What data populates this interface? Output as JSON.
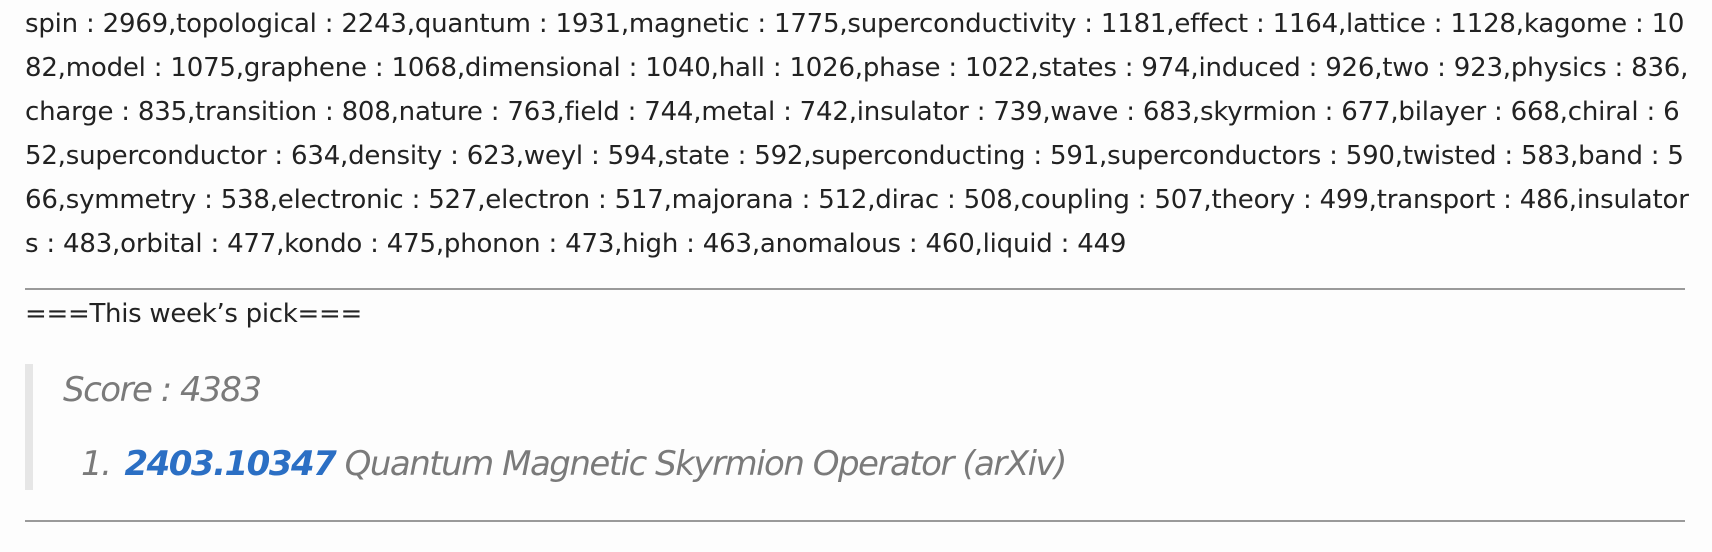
{
  "word_counts": "spin : 2969,topological : 2243,quantum : 1931,magnetic : 1775,superconductivity : 1181,effect : 1164,lattice : 1128,kagome : 1082,model : 1075,graphene : 1068,dimensional : 1040,hall : 1026,phase : 1022,states : 974,induced : 926,two : 923,physics : 836,charge : 835,transition : 808,nature : 763,field : 744,metal : 742,insulator : 739,wave : 683,skyrmion : 677,bilayer : 668,chiral : 652,superconductor : 634,density : 623,weyl : 594,state : 592,superconducting : 591,superconductors : 590,twisted : 583,band : 566,symmetry : 538,electronic : 527,electron : 517,majorana : 512,dirac : 508,coupling : 507,theory : 499,transport : 486,insulators : 483,orbital : 477,kondo : 475,phonon : 473,high : 463,anomalous : 460,liquid : 449",
  "section_title": "===This week’s pick===",
  "pick": {
    "score": "Score : 4383",
    "items": [
      {
        "number": "1.",
        "arxiv_id": "2403.10347",
        "title": "Quantum Magnetic Skyrmion Operator (arXiv)"
      }
    ]
  },
  "colors": {
    "link": "#2b6fc4",
    "muted": "#7a7a7a",
    "divider": "#9a9a9a"
  }
}
